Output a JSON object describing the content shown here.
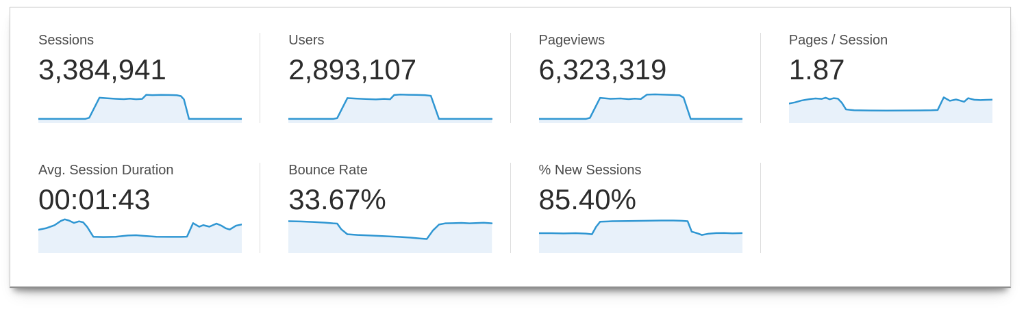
{
  "colors": {
    "sparkline_stroke": "#2f96d2",
    "sparkline_fill": "#e8f1fa",
    "label_text": "#4c4c4c",
    "value_text": "#2c2c2c",
    "divider": "#dcdcdc",
    "panel_border": "#cccccc"
  },
  "chart_data": [
    {
      "type": "area",
      "label": "Sessions",
      "value": "3,384,941",
      "legend": false,
      "points": [
        [
          0,
          26.5
        ],
        [
          8,
          26.5
        ],
        [
          16,
          26.5
        ],
        [
          23,
          26.5
        ],
        [
          25,
          25.5
        ],
        [
          30,
          8.6
        ],
        [
          34,
          9.1
        ],
        [
          38,
          9.5
        ],
        [
          42,
          9.8
        ],
        [
          45,
          9.4
        ],
        [
          48,
          9.9
        ],
        [
          51,
          9.6
        ],
        [
          53,
          6.1
        ],
        [
          56,
          6.4
        ],
        [
          60,
          6.2
        ],
        [
          64,
          6.3
        ],
        [
          68,
          6.5
        ],
        [
          70,
          7.2
        ],
        [
          71.5,
          10
        ],
        [
          74,
          26.5
        ],
        [
          80,
          26.5
        ],
        [
          88,
          26.5
        ],
        [
          100,
          26.5
        ]
      ]
    },
    {
      "type": "area",
      "label": "Users",
      "value": "2,893,107",
      "legend": false,
      "points": [
        [
          0,
          26.5
        ],
        [
          9,
          26.5
        ],
        [
          17,
          26.5
        ],
        [
          22,
          26.5
        ],
        [
          24,
          25.8
        ],
        [
          29,
          8.9
        ],
        [
          33,
          9.3
        ],
        [
          38,
          9.7
        ],
        [
          43,
          10
        ],
        [
          47,
          9.6
        ],
        [
          50,
          9.9
        ],
        [
          52,
          6.3
        ],
        [
          55,
          5.9
        ],
        [
          59,
          6.1
        ],
        [
          63,
          6.2
        ],
        [
          67,
          6.4
        ],
        [
          70,
          7
        ],
        [
          74,
          26.5
        ],
        [
          81,
          26.5
        ],
        [
          90,
          26.5
        ],
        [
          100,
          26.5
        ]
      ]
    },
    {
      "type": "area",
      "label": "Pageviews",
      "value": "6,323,319",
      "legend": false,
      "points": [
        [
          0,
          26.5
        ],
        [
          10,
          26.5
        ],
        [
          18,
          26.5
        ],
        [
          23,
          26.5
        ],
        [
          25,
          25.6
        ],
        [
          30,
          8.7
        ],
        [
          35,
          9.5
        ],
        [
          40,
          9.2
        ],
        [
          44,
          9.8
        ],
        [
          47,
          9.4
        ],
        [
          50,
          9.7
        ],
        [
          53,
          6
        ],
        [
          57,
          5.8
        ],
        [
          61,
          6
        ],
        [
          65,
          6.2
        ],
        [
          69,
          6.5
        ],
        [
          71,
          8.5
        ],
        [
          74.5,
          26.5
        ],
        [
          82,
          26.5
        ],
        [
          91,
          26.5
        ],
        [
          100,
          26.5
        ]
      ]
    },
    {
      "type": "area",
      "label": "Pages / Session",
      "value": "1.87",
      "legend": false,
      "points": [
        [
          0,
          13.5
        ],
        [
          3,
          12.5
        ],
        [
          6,
          11
        ],
        [
          10,
          9.8
        ],
        [
          13,
          9.2
        ],
        [
          16,
          9.6
        ],
        [
          18,
          8.6
        ],
        [
          20,
          9.9
        ],
        [
          22,
          9
        ],
        [
          24,
          9.4
        ],
        [
          26,
          13
        ],
        [
          28,
          18.5
        ],
        [
          32,
          19.2
        ],
        [
          40,
          19.4
        ],
        [
          48,
          19.5
        ],
        [
          56,
          19.4
        ],
        [
          64,
          19.3
        ],
        [
          70,
          19.2
        ],
        [
          73,
          19
        ],
        [
          76,
          8.3
        ],
        [
          79,
          11.2
        ],
        [
          82,
          10.1
        ],
        [
          84,
          11
        ],
        [
          86,
          12
        ],
        [
          88,
          9
        ],
        [
          91,
          10.3
        ],
        [
          94,
          10.6
        ],
        [
          97,
          10.4
        ],
        [
          100,
          10.2
        ]
      ]
    },
    {
      "type": "area",
      "label": "Avg. Session Duration",
      "value": "00:01:43",
      "legend": false,
      "points": [
        [
          0,
          10.4
        ],
        [
          4,
          9
        ],
        [
          8,
          6.5
        ],
        [
          11,
          3
        ],
        [
          13,
          1.6
        ],
        [
          15,
          2.6
        ],
        [
          17.5,
          4.6
        ],
        [
          20,
          3.3
        ],
        [
          22,
          4.1
        ],
        [
          24,
          8
        ],
        [
          27,
          16.3
        ],
        [
          32,
          16.5
        ],
        [
          38,
          16.3
        ],
        [
          44,
          15.2
        ],
        [
          48,
          15
        ],
        [
          52,
          15.6
        ],
        [
          58,
          16.3
        ],
        [
          65,
          16.4
        ],
        [
          70,
          16.4
        ],
        [
          73,
          16.2
        ],
        [
          76,
          4.8
        ],
        [
          79,
          7.8
        ],
        [
          81,
          6.5
        ],
        [
          84,
          7.8
        ],
        [
          87.5,
          5.2
        ],
        [
          90,
          7
        ],
        [
          92,
          9.1
        ],
        [
          94,
          10.2
        ],
        [
          97,
          7
        ],
        [
          100,
          5.9
        ]
      ]
    },
    {
      "type": "area",
      "label": "Bounce Rate",
      "value": "33.67%",
      "legend": false,
      "points": [
        [
          0,
          3.2
        ],
        [
          6,
          3.4
        ],
        [
          12,
          3.8
        ],
        [
          18,
          4.4
        ],
        [
          22,
          5
        ],
        [
          24,
          5.2
        ],
        [
          26,
          10
        ],
        [
          29,
          14.2
        ],
        [
          34,
          14.8
        ],
        [
          40,
          15.2
        ],
        [
          47,
          15.8
        ],
        [
          54,
          16.4
        ],
        [
          60,
          17
        ],
        [
          65,
          17.8
        ],
        [
          68,
          18.2
        ],
        [
          71,
          11
        ],
        [
          74,
          6
        ],
        [
          77,
          5
        ],
        [
          81,
          4.8
        ],
        [
          85,
          4.6
        ],
        [
          89,
          5
        ],
        [
          93,
          4.7
        ],
        [
          96,
          4.5
        ],
        [
          100,
          5
        ]
      ]
    },
    {
      "type": "area",
      "label": "% New Sessions",
      "value": "85.40%",
      "legend": false,
      "points": [
        [
          0,
          13.3
        ],
        [
          6,
          13.3
        ],
        [
          12,
          13.5
        ],
        [
          18,
          13.3
        ],
        [
          23,
          13.6
        ],
        [
          26,
          14.2
        ],
        [
          28,
          8
        ],
        [
          30,
          3.6
        ],
        [
          36,
          3.2
        ],
        [
          44,
          3
        ],
        [
          52,
          2.8
        ],
        [
          60,
          2.6
        ],
        [
          66,
          2.6
        ],
        [
          70,
          2.8
        ],
        [
          73,
          3.2
        ],
        [
          75,
          12
        ],
        [
          78,
          13.5
        ],
        [
          80,
          14.8
        ],
        [
          83,
          13.8
        ],
        [
          87,
          13.2
        ],
        [
          91,
          13.1
        ],
        [
          95,
          13.4
        ],
        [
          100,
          13.2
        ]
      ]
    }
  ]
}
